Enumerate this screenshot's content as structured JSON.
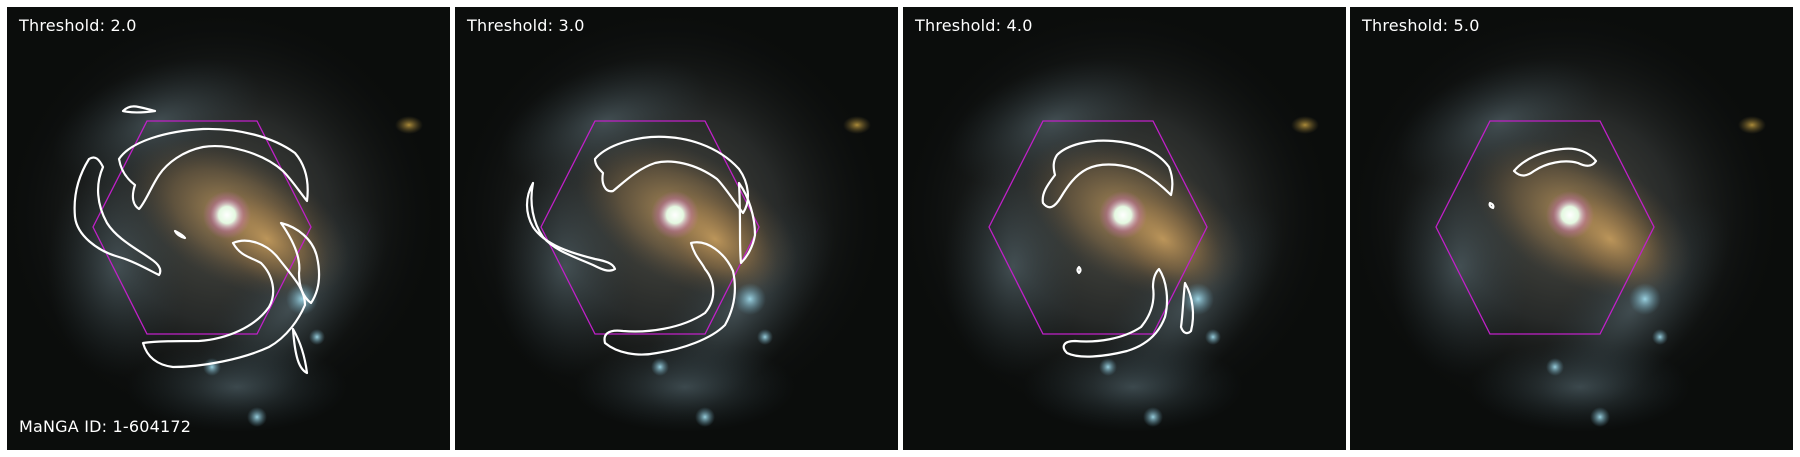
{
  "panels": [
    {
      "threshold_label": "Threshold: 2.0"
    },
    {
      "threshold_label": "Threshold: 3.0"
    },
    {
      "threshold_label": "Threshold: 4.0"
    },
    {
      "threshold_label": "Threshold: 5.0"
    }
  ],
  "galaxy_id_label": "MaNGA ID: 1-604172",
  "colors": {
    "contour": "#ffffff",
    "hexagon": "#c020c8",
    "background": "#0b0d0c"
  }
}
